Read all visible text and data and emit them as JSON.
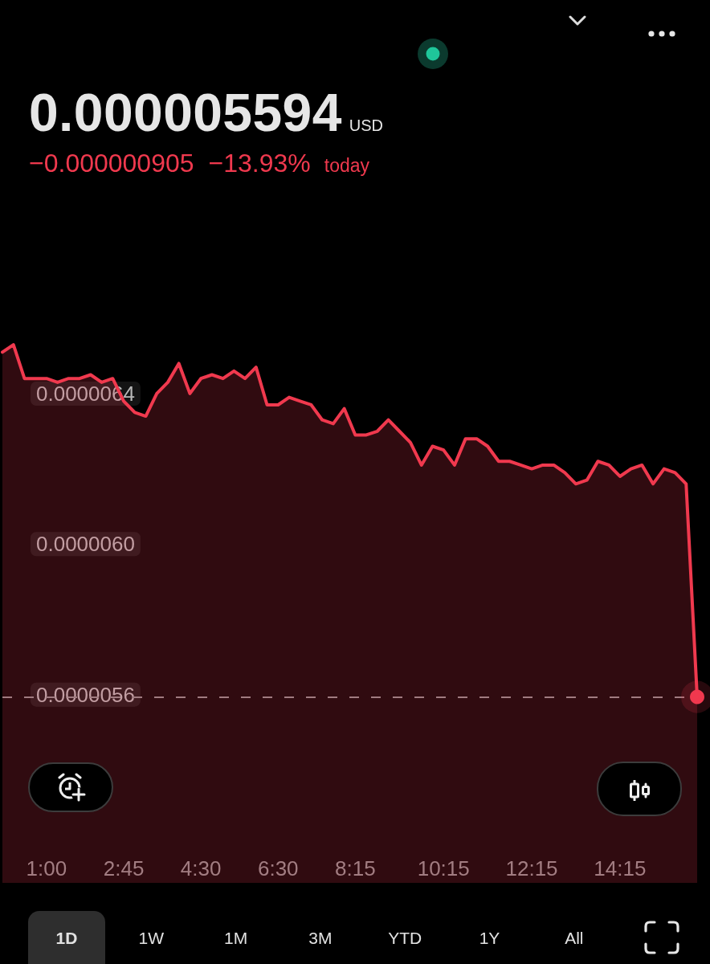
{
  "chart_data": {
    "type": "area",
    "annotations": [
      "0.000005594",
      "USD",
      "−0.000000905",
      "−13.93%",
      "today",
      "1D",
      "1W",
      "1M",
      "3M",
      "YTD",
      "1Y",
      "All"
    ],
    "categories": [
      null,
      null,
      null,
      null,
      "1:00",
      null,
      null,
      null,
      null,
      null,
      null,
      "2:45",
      null,
      null,
      null,
      null,
      null,
      null,
      "4:30",
      null,
      null,
      null,
      null,
      null,
      null,
      "6:30",
      null,
      null,
      null,
      null,
      null,
      null,
      "8:15",
      null,
      null,
      null,
      null,
      null,
      null,
      null,
      "10:15",
      null,
      null,
      null,
      null,
      null,
      null,
      null,
      "12:15",
      null,
      null,
      null,
      null,
      null,
      null,
      null,
      "14:15",
      null,
      null,
      null,
      null,
      null,
      null,
      null
    ],
    "values": [
      6.51e-06,
      6.53e-06,
      6.44e-06,
      6.44e-06,
      6.44e-06,
      6.43e-06,
      6.44e-06,
      6.44e-06,
      6.45e-06,
      6.43e-06,
      6.44e-06,
      6.38e-06,
      6.35e-06,
      6.34e-06,
      6.4e-06,
      6.43e-06,
      6.48e-06,
      6.4e-06,
      6.44e-06,
      6.45e-06,
      6.44e-06,
      6.46e-06,
      6.44e-06,
      6.47e-06,
      6.37e-06,
      6.37e-06,
      6.39e-06,
      6.38e-06,
      6.37e-06,
      6.33e-06,
      6.32e-06,
      6.36e-06,
      6.29e-06,
      6.29e-06,
      6.3e-06,
      6.33e-06,
      6.3e-06,
      6.27e-06,
      6.21e-06,
      6.26e-06,
      6.25e-06,
      6.21e-06,
      6.28e-06,
      6.28e-06,
      6.26e-06,
      6.22e-06,
      6.22e-06,
      6.21e-06,
      6.2e-06,
      6.21e-06,
      6.21e-06,
      6.19e-06,
      6.16e-06,
      6.17e-06,
      6.22e-06,
      6.21e-06,
      6.18e-06,
      6.2e-06,
      6.21e-06,
      6.16e-06,
      6.2e-06,
      6.19e-06,
      6.16e-06,
      5.594e-06
    ],
    "color": "#f0394e",
    "ylim": [
      4.884e-06,
      7.446e-06
    ],
    "yticks": [
      {
        "value": 5.6e-06,
        "label": "0.0000056"
      },
      {
        "value": 6e-06,
        "label": "0.0000060"
      },
      {
        "value": 6.4e-06,
        "label": "0.0000064"
      }
    ],
    "ref_lines": [
      {
        "axis": "y",
        "value": 5.594e-06,
        "color": "#8c8c8c",
        "line_style": "dashed"
      }
    ],
    "grid": false
  }
}
